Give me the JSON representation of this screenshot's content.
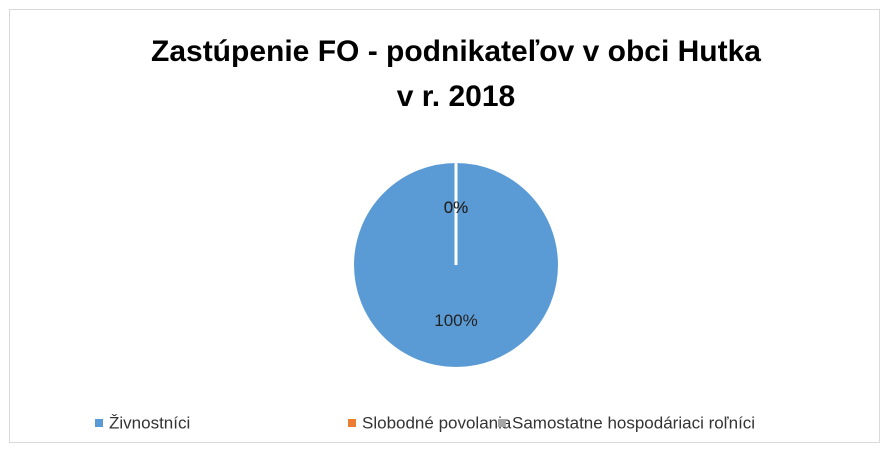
{
  "chart_data": {
    "type": "pie",
    "title": [
      "Zastúpenie FO - podnikateľov v obci Hutka",
      "v r. 2018"
    ],
    "categories": [
      "Živnostníci",
      "Slobodné povolania",
      "Samostatne hospodáriaci roľníci"
    ],
    "values": [
      100,
      0,
      0
    ],
    "value_labels": [
      "100%",
      "0%",
      "0%"
    ],
    "colors": [
      "#5b9bd5",
      "#ed7d31",
      "#a5a5a5"
    ],
    "legend": "bottom"
  }
}
